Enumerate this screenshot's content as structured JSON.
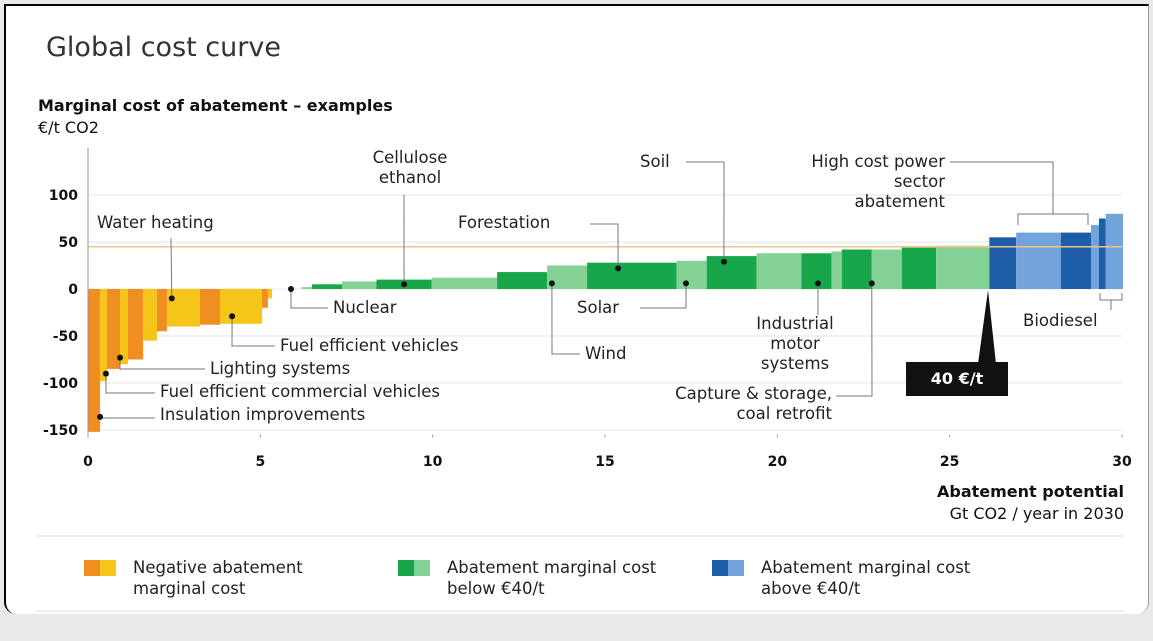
{
  "chart_data": {
    "type": "cost_curve",
    "title": "Global cost curve",
    "y_label": "Marginal cost of abatement – examples",
    "y_unit": "€/t CO2",
    "x_label": "Abatement potential",
    "x_unit": "Gt CO2 / year in 2030",
    "xlim": [
      0,
      30
    ],
    "xticks": [
      0,
      5,
      10,
      15,
      20,
      25,
      30
    ],
    "ylim": [
      -155,
      150
    ],
    "yticks": [
      -150,
      -100,
      -50,
      0,
      50,
      100
    ],
    "grid": true,
    "reference_line": 45,
    "reference_color": "#f2c48a",
    "series": [
      {
        "name": "Negative abatement marginal cost",
        "colors": [
          "#ef8f22",
          "#f6c519"
        ],
        "widths": [
          0.35,
          0.2,
          0.38,
          0.23,
          0.44,
          0.4,
          0.29,
          0.96,
          0.58,
          1.22,
          0.17,
          0.12
        ],
        "values": [
          -152,
          -98,
          -85,
          -80,
          -75,
          -55,
          -45,
          -40,
          -38,
          -37,
          -20,
          -10
        ]
      },
      {
        "name": "Abatement marginal cost below €40/t",
        "colors": [
          "#17a64a",
          "#84d196"
        ],
        "widths": [
          0.86,
          0.3,
          0.87,
          1.0,
          1.6,
          1.9,
          1.45,
          1.16,
          2.6,
          0.87,
          1.45,
          1.3,
          0.87,
          0.3,
          0.87,
          0.87,
          1.0,
          1.54
        ],
        "values": [
          0,
          2,
          5,
          8,
          10,
          12,
          18,
          25,
          28,
          30,
          35,
          38,
          38,
          40,
          42,
          42,
          44,
          46
        ]
      },
      {
        "name": "Abatement marginal cost above €40/t",
        "colors": [
          "#1e5ea8",
          "#72a3da"
        ],
        "widths": [
          0.78,
          1.3,
          0.87,
          0.23,
          0.2,
          0.5
        ],
        "values": [
          55,
          60,
          60,
          68,
          75,
          80
        ]
      }
    ],
    "annotations": [
      {
        "text": "Water heating",
        "x": 2.43,
        "y": -10
      },
      {
        "text": "Cellulose ethanol",
        "x": 9.17,
        "y": 5
      },
      {
        "text": "Forestation",
        "x": 15.38,
        "y": 22
      },
      {
        "text": "Soil",
        "x": 18.45,
        "y": 29
      },
      {
        "text": "High cost power sector abatement"
      },
      {
        "text": "Nuclear",
        "x": 5.89,
        "y": 0
      },
      {
        "text": "Solar",
        "x": 17.35,
        "y": 6
      },
      {
        "text": "Wind",
        "x": 13.46,
        "y": 6
      },
      {
        "text": "Industrial motor systems",
        "x": 21.18,
        "y": 6
      },
      {
        "text": "Capture & storage, coal retrofit",
        "x": 22.74,
        "y": 6
      },
      {
        "text": "Fuel efficient vehicles",
        "x": 4.18,
        "y": -29
      },
      {
        "text": "Lighting systems",
        "x": 0.93,
        "y": -73
      },
      {
        "text": "Fuel efficient commercial vehicles",
        "x": 0.52,
        "y": -90
      },
      {
        "text": "Insulation improvements",
        "x": 0.35,
        "y": -136
      },
      {
        "text": "Biodiesel"
      }
    ],
    "callout": "40 €/t"
  }
}
